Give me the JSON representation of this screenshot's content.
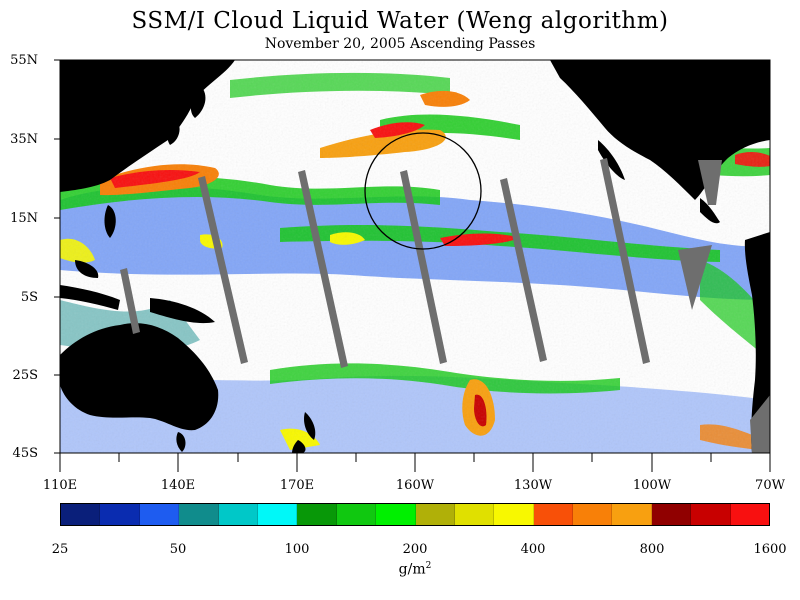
{
  "title": "SSM/I Cloud Liquid Water (Weng algorithm)",
  "subtitle": "November 20, 2005  Ascending Passes",
  "lat_labels": [
    "55N",
    "35N",
    "15N",
    "5S",
    "25S",
    "45S"
  ],
  "lon_labels": [
    "110E",
    "140E",
    "170E",
    "160W",
    "130W",
    "100W",
    "70W"
  ],
  "colorbar": {
    "tick_labels": [
      "25",
      "50",
      "100",
      "200",
      "400",
      "800",
      "1600"
    ],
    "units_main": "g/m",
    "units_sup": "2",
    "colors": [
      "#0a1f7a",
      "#0a2cb0",
      "#1e5cf0",
      "#108c8c",
      "#00c8c8",
      "#00f8f8",
      "#089808",
      "#10c810",
      "#00f000",
      "#b0b008",
      "#e0e000",
      "#f8f800",
      "#f85008",
      "#f88008",
      "#f8a010",
      "#900000",
      "#c80000",
      "#f81010"
    ]
  }
}
